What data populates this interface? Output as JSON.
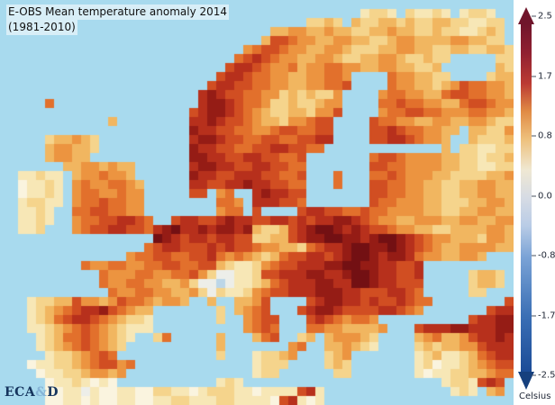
{
  "title": {
    "line1": "E-OBS Mean temperature anomaly 2014",
    "line2": "(1981-2010)"
  },
  "logo": {
    "prefix": "ECA",
    "amp": "&",
    "suffix": "D"
  },
  "colorbar": {
    "unit_label": "Celsius",
    "ticks": [
      "2.5",
      "1.7",
      "0.8",
      "0.0",
      "-0.8",
      "-1.7",
      "-2.5"
    ],
    "gradient": [
      "#1c4c97 0%",
      "#3a6fb5 16%",
      "#7ba3d6 33%",
      "#b9cce6 42%",
      "#d6dbe4 50%",
      "#efe8d3 58%",
      "#eec07c 67%",
      "#e08a44 75%",
      "#bb3a33 83%",
      "#8f2031 92%",
      "#70152b 100%"
    ],
    "arrow_top_color": "#70152b",
    "arrow_bottom_color": "#16407e"
  },
  "map": {
    "cell_size": 10,
    "sea_color": "#A8DAEE",
    "palette": {
      "~": "#A8DAEE",
      "a": "#FAF4DF",
      "b": "#F7E7B6",
      "c": "#F5D48C",
      "d": "#F1B660",
      "e": "#EC9440",
      "f": "#E2702C",
      "g": "#D14E22",
      "h": "#B7301C",
      "i": "#951C15",
      "j": "#731013",
      "w": "#EDEEE9",
      "u": "#BCD6E8"
    },
    "grid": [
      "~~~~~~~~~~~~~~~~~~~~~~~~~~~~~~~~~~~~~~~~~~~~~~~~~~~~~~~~~",
      "~~~~~~~~~~~~~~~~~~~~~~~~~~~~~~~~~~~~~~~~bccb~cbbcb~bccb~~",
      "~~~~~~~~~~~~~~~~~~~~~~~~~~~~~~~~~~ccdc~dccddcdccddccbbcc~",
      "~~~~~~~~~~~~~~~~~~~~~~~~~~~~~~ddeeddeddccddeddccdccbbcdc~",
      "~~~~~~~~~~~~~~~~~~~~~~~~~~~~~dggfeeddeeddccdeeddddeeddcc~",
      "~~~~~~~~~~~~~~~~~~~~~~~~~~~efggfeeddeedcccddeeddccddccddc",
      "~~~~~~~~~~~~~~~~~~~~~~~~~~fghgfeeddeedccddeedccdcc~~~~~cc",
      "~~~~~~~~~~~~~~~~~~~~~~~~~ghhgfeefdeeffeeddeeddccd~~~~~~dc",
      "~~~~~~~~~~~~~~~~~~~~~~~~ghhgffeeddeeffe~~~~feeddcc~~~~cdd",
      "~~~~~~~~~~~~~~~~~~~~~~~ghhggffeeddeeffg~~~~feeddcdegffeed",
      "~~~~~~~~~~~~~~~~~~~~~~hihggffeecdcdcce~~~~effeeddfggffeed",
      "~~~~~f~~~~~~~~~~~~~~~~hiihgffeccdccdee~~~~ffgffeeddfggfee",
      "~~~~~~~~~~~~~~~~~~~~~ghiihgfedccddceeg~~~~effggffeeeffeed",
      "~~~~~~~~~~~~d~~~~~~~~hhihggfeddceefgg~~~~gffeeddeeddeedcc",
      "~~~~~~~~~~~~~~~~~~~~~ihhggffeefggffgg~~~~gghgffeedd~ddcce",
      "~~~~~cddedc~~~~~~~~~~hiihggffggffgghh~~~~gghhgfeed~~dcccd",
      "~~~~~deeddc~~~~~~~~~~ihhggffgghhggff~~~~~~~~~~~~~d~ccbbcc",
      "~~~~~deedd~~~~~~~~~~~iihhgghhggffg~~~~~~~fggfeeeeddccbccd",
      "~~~~~~~ddeededd~~~~~~hiihhgghhggff~~~~~~~ggffeeeeddccbbcc",
      "~~bbcbb~deefeed~~~~~~ihhgghhhggffg~~~f~~~ffgfeeeddccccdde",
      "~~abbcb~efeeffed~~~~~hhgghhihhggff~~~f~~~ggffeeddccddeedd",
      "~~abbcb~effeefee~~~~~gg~ef~~hihhgg~~~~~~~ggffeeddccddeedd",
      "~~bccbb~effgffee~~~~~~~~ffe~hhhggf~~~~~~~gffeeeddcccddeed",
      "~~bbcb~~ffggffee~~~~~~~~eff~g~~~~ghhggffgffeeeeddccddeedd",
      "~~bbcb~~effgghhgf~~ghhgghihhgghhghghhiihgfeeddeeeddeeddee",
      "~~bbc~~~efgghhggfhijhhihiihidccdghijjihihggfeeddccddddeed",
      "~~~~~~~~~~~~~~~~~jihghhghhggccddghiijjiihijjihgfeedddceed",
      "~~~~~~~~~~~~~~~~fghhggghghggfeeddcfghhijjiijihgfeddeeeedd",
      "~~~~~~~~~~~~~~effggffgghfefedcdfgghhghijjihiihfeeddeed~~~",
      "~~~~~~~~~feeffeeffggffggdcbbcefgghhhiijjiihhggh~~~~~~~~~~",
      "~~~~~~~~~~~feeeffeeffgecwwbbcgghhhiihhijjihhggh~~~~~cddc~",
      "~~~~~~~~~~~feeffeeddecwwuwbbcdfghhhiihhjjihhggg~~~~~cddc~",
      "~~~~~~~~~~~~feeffeeddecwcbbcefgghhhiiihhggghhgf~~~~~cc~~~",
      "~~~bccddgeedegffedeed~~d~~ddeg~~~~ghiihhghgghgff~~~~~~~~g",
      "~~~bcdefghhigfedd~~~~~~~c~defg~~~ghiihgggghhgfe~~~~~~~ghh",
      "~~~bcdfghhgfedccb~~~~~~~c~~efgg~~~ghgfeffe~~~~~~~~~~ghhii",
      "~~~bbcdefgfedcbbb~~~~~~~~~~efgf~~~ffeedddde~~~ghhhiihhhii",
      "~~~~bcdffgfedcb~~cf~~~~~d~~~dfg~~cd~deeedc~~~~defddeghhih",
      "~~~~bcdefgfedc~~~~~~~~~~d~~~~~~~ef~~ddedcb~~~~cdcddeeghhh",
      "~~~~~bccdefgf~~~~~~~~~~~c~~~bccde~~~cde~~~~~~~bcdbbcdfghh",
      "~~~abbccdefggef~~~~~~~~~~~~~bccc~~~~cdc~~~~~~~bcabbcdefgg",
      "~~~~abbccdeede~~~~~~~~~~~~~~bcc~~~~~~cc~~~~~~~babbccddeff",
      "~~~~~abbcbaba~~~~~~~~~~~bcb~~~~~~~~~~~~~~~~~~~~~~bccbghg",
      "~~~~~aabbwbaabbaaccbbabcccbbabbbbghb~~~~~~~~~~~~~~bcb~de~",
      "~~~~~aabbabaabbaabbccbbbccbbbbaghbab~~~~~~~~~~~~~~~~~~~~~"
    ]
  }
}
